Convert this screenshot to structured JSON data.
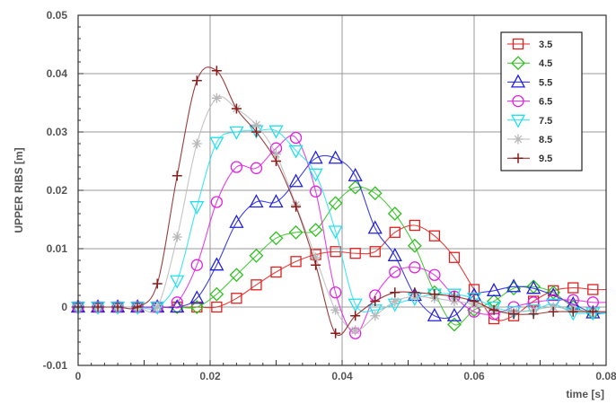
{
  "chart_data": {
    "type": "line",
    "title": "",
    "xlabel": "time [s]",
    "ylabel": "UPPER RIBS [m]",
    "xlim": [
      0,
      0.08
    ],
    "ylim": [
      -0.01,
      0.05
    ],
    "x_ticks": [
      "0",
      "0.02",
      "0.04",
      "0.06",
      "0.08"
    ],
    "x_tick_values": [
      0,
      0.02,
      0.04,
      0.06,
      0.08
    ],
    "y_ticks": [
      "-0.01",
      "0",
      "0.01",
      "0.02",
      "0.03",
      "0.04",
      "0.05"
    ],
    "y_tick_values": [
      -0.01,
      0,
      0.01,
      0.02,
      0.03,
      0.04,
      0.05
    ],
    "grid": true,
    "legend_position": "top-right",
    "series": [
      {
        "name": "3.5",
        "color": "#e02020",
        "marker": "square",
        "points": [
          [
            0,
            0
          ],
          [
            0.003,
            0
          ],
          [
            0.006,
            0
          ],
          [
            0.009,
            0
          ],
          [
            0.012,
            0
          ],
          [
            0.015,
            0
          ],
          [
            0.018,
            0
          ],
          [
            0.021,
            0
          ],
          [
            0.024,
            0.0015
          ],
          [
            0.027,
            0.0038
          ],
          [
            0.03,
            0.006
          ],
          [
            0.033,
            0.0078
          ],
          [
            0.036,
            0.009
          ],
          [
            0.039,
            0.0095
          ],
          [
            0.042,
            0.0092
          ],
          [
            0.045,
            0.0095
          ],
          [
            0.048,
            0.0128
          ],
          [
            0.051,
            0.014
          ],
          [
            0.054,
            0.0122
          ],
          [
            0.057,
            0.0085
          ],
          [
            0.06,
            0.003
          ],
          [
            0.063,
            -0.002
          ],
          [
            0.066,
            -0.0015
          ],
          [
            0.069,
            0.001
          ],
          [
            0.072,
            0.0028
          ],
          [
            0.075,
            0.0033
          ],
          [
            0.078,
            0.003
          ]
        ]
      },
      {
        "name": "4.5",
        "color": "#30c020",
        "marker": "diamond",
        "points": [
          [
            0,
            0
          ],
          [
            0.003,
            0
          ],
          [
            0.006,
            0
          ],
          [
            0.009,
            0
          ],
          [
            0.012,
            0
          ],
          [
            0.015,
            0
          ],
          [
            0.018,
            0
          ],
          [
            0.021,
            0.0022
          ],
          [
            0.024,
            0.0055
          ],
          [
            0.027,
            0.0088
          ],
          [
            0.03,
            0.0118
          ],
          [
            0.033,
            0.0128
          ],
          [
            0.036,
            0.0132
          ],
          [
            0.039,
            0.0178
          ],
          [
            0.042,
            0.0205
          ],
          [
            0.045,
            0.0195
          ],
          [
            0.048,
            0.016
          ],
          [
            0.051,
            0.0105
          ],
          [
            0.054,
            0.0025
          ],
          [
            0.057,
            -0.003
          ],
          [
            0.06,
            -0.0005
          ],
          [
            0.063,
            0.001
          ],
          [
            0.066,
            0.0032
          ],
          [
            0.069,
            0.0035
          ],
          [
            0.072,
            0.0025
          ],
          [
            0.075,
            0
          ],
          [
            0.078,
            -0.001
          ]
        ]
      },
      {
        "name": "5.5",
        "color": "#2020e0",
        "marker": "triangle-up",
        "points": [
          [
            0,
            0
          ],
          [
            0.003,
            0
          ],
          [
            0.006,
            0
          ],
          [
            0.009,
            0
          ],
          [
            0.012,
            0
          ],
          [
            0.015,
            0
          ],
          [
            0.018,
            0.0015
          ],
          [
            0.021,
            0.0072
          ],
          [
            0.024,
            0.0145
          ],
          [
            0.027,
            0.018
          ],
          [
            0.03,
            0.018
          ],
          [
            0.033,
            0.0215
          ],
          [
            0.036,
            0.0255
          ],
          [
            0.039,
            0.0255
          ],
          [
            0.042,
            0.0225
          ],
          [
            0.045,
            0.0135
          ],
          [
            0.048,
            0.0088
          ],
          [
            0.051,
            0.002
          ],
          [
            0.054,
            -0.0015
          ],
          [
            0.057,
            -0.0015
          ],
          [
            0.06,
            0.002
          ],
          [
            0.063,
            0.0028
          ],
          [
            0.066,
            0.0035
          ],
          [
            0.069,
            0.0032
          ],
          [
            0.072,
            0.002
          ],
          [
            0.075,
            0.0005
          ],
          [
            0.078,
            -0.001
          ]
        ]
      },
      {
        "name": "6.5",
        "color": "#e020e0",
        "marker": "circle",
        "points": [
          [
            0,
            0
          ],
          [
            0.003,
            0
          ],
          [
            0.006,
            0
          ],
          [
            0.009,
            0
          ],
          [
            0.012,
            0
          ],
          [
            0.015,
            0.0008
          ],
          [
            0.018,
            0.0072
          ],
          [
            0.021,
            0.018
          ],
          [
            0.024,
            0.024
          ],
          [
            0.027,
            0.0238
          ],
          [
            0.03,
            0.0272
          ],
          [
            0.033,
            0.029
          ],
          [
            0.036,
            0.0198
          ],
          [
            0.039,
            0.0025
          ],
          [
            0.042,
            -0.0045
          ],
          [
            0.045,
            0.002
          ],
          [
            0.048,
            0.006
          ],
          [
            0.051,
            0.0068
          ],
          [
            0.054,
            0.0055
          ],
          [
            0.057,
            0.0018
          ],
          [
            0.06,
            -0.0008
          ],
          [
            0.063,
            -0.0012
          ],
          [
            0.066,
            0
          ],
          [
            0.069,
            0.0008
          ],
          [
            0.072,
            0.0012
          ],
          [
            0.075,
            0.0012
          ],
          [
            0.078,
            0.0008
          ]
        ]
      },
      {
        "name": "7.5",
        "color": "#20e0f0",
        "marker": "triangle-down",
        "points": [
          [
            0,
            0
          ],
          [
            0.003,
            0
          ],
          [
            0.006,
            0
          ],
          [
            0.009,
            0
          ],
          [
            0.012,
            0
          ],
          [
            0.015,
            0.0045
          ],
          [
            0.018,
            0.0172
          ],
          [
            0.021,
            0.0282
          ],
          [
            0.024,
            0.03
          ],
          [
            0.027,
            0.0302
          ],
          [
            0.03,
            0.0302
          ],
          [
            0.033,
            0.0268
          ],
          [
            0.036,
            0.0228
          ],
          [
            0.039,
            0.013
          ],
          [
            0.042,
            0.0005
          ],
          [
            0.045,
            -0.0005
          ],
          [
            0.048,
            0.0005
          ],
          [
            0.051,
            0.0015
          ],
          [
            0.054,
            0.0022
          ],
          [
            0.057,
            0.0022
          ],
          [
            0.06,
            0.0015
          ],
          [
            0.063,
            0
          ],
          [
            0.066,
            -0.0008
          ],
          [
            0.069,
            -0.0005
          ],
          [
            0.072,
            0.0005
          ],
          [
            0.075,
            -0.001
          ],
          [
            0.078,
            -0.001
          ]
        ]
      },
      {
        "name": "8.5",
        "color": "#b8b8b8",
        "marker": "asterisk",
        "points": [
          [
            0,
            0
          ],
          [
            0.003,
            0
          ],
          [
            0.006,
            0
          ],
          [
            0.009,
            0
          ],
          [
            0.012,
            0
          ],
          [
            0.015,
            0.012
          ],
          [
            0.018,
            0.028
          ],
          [
            0.021,
            0.0358
          ],
          [
            0.024,
            0.034
          ],
          [
            0.027,
            0.0312
          ],
          [
            0.03,
            0.0262
          ],
          [
            0.033,
            0.0175
          ],
          [
            0.036,
            0.0085
          ],
          [
            0.039,
            -0.0005
          ],
          [
            0.042,
            -0.004
          ],
          [
            0.045,
            -0.0015
          ],
          [
            0.048,
            0.001
          ],
          [
            0.051,
            0.0018
          ],
          [
            0.054,
            0.0015
          ],
          [
            0.057,
            0.001
          ],
          [
            0.06,
            0.0005
          ],
          [
            0.063,
            -0.0005
          ],
          [
            0.066,
            -0.0008
          ],
          [
            0.069,
            -0.0005
          ],
          [
            0.072,
            0
          ],
          [
            0.075,
            -0.0005
          ],
          [
            0.078,
            -0.0008
          ]
        ]
      },
      {
        "name": "9.5",
        "color": "#8b1a1a",
        "marker": "plus",
        "points": [
          [
            0,
            0
          ],
          [
            0.003,
            0
          ],
          [
            0.006,
            0
          ],
          [
            0.009,
            0
          ],
          [
            0.012,
            0.004
          ],
          [
            0.015,
            0.0225
          ],
          [
            0.018,
            0.0388
          ],
          [
            0.021,
            0.0405
          ],
          [
            0.024,
            0.034
          ],
          [
            0.027,
            0.03
          ],
          [
            0.03,
            0.025
          ],
          [
            0.033,
            0.0172
          ],
          [
            0.036,
            0.0072
          ],
          [
            0.039,
            -0.0045
          ],
          [
            0.042,
            -0.0015
          ],
          [
            0.045,
            0.001
          ],
          [
            0.048,
            0.0025
          ],
          [
            0.051,
            0.0025
          ],
          [
            0.054,
            0.0022
          ],
          [
            0.057,
            0.0018
          ],
          [
            0.06,
            0.001
          ],
          [
            0.063,
            -0.0005
          ],
          [
            0.066,
            -0.0012
          ],
          [
            0.069,
            -0.0012
          ],
          [
            0.072,
            -0.0008
          ],
          [
            0.075,
            -0.0008
          ],
          [
            0.078,
            -0.0008
          ]
        ]
      }
    ]
  }
}
